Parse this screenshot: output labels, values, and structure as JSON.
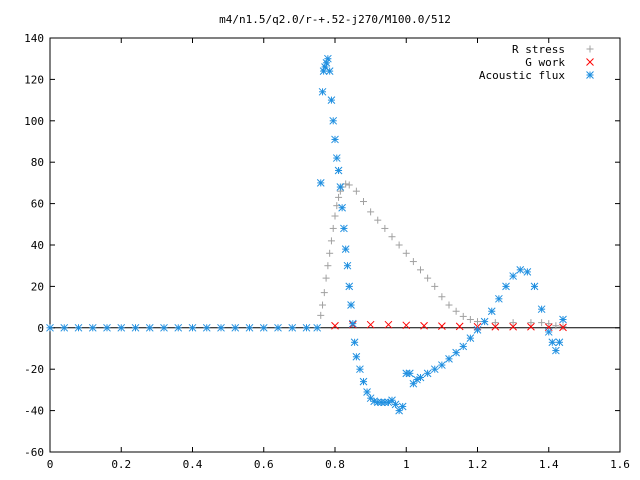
{
  "chart_data": {
    "type": "scatter",
    "title": "m4/n1.5/q2.0/r-+.52-j270/M100.0/512",
    "xlabel": "",
    "ylabel": "",
    "xlim": [
      0,
      1.6
    ],
    "ylim": [
      -60,
      140
    ],
    "xticks": [
      "0",
      "0.2",
      "0.4",
      "0.6",
      "0.8",
      "1",
      "1.2",
      "1.4",
      "1.6"
    ],
    "yticks": [
      "-60",
      "-40",
      "-20",
      "0",
      "20",
      "40",
      "60",
      "80",
      "100",
      "120",
      "140"
    ],
    "grid": false,
    "legend_position": "top-right",
    "series": [
      {
        "name": "R stress",
        "marker": "plus",
        "color": "#a0a0a0",
        "points": [
          [
            0.76,
            6
          ],
          [
            0.765,
            11
          ],
          [
            0.77,
            17
          ],
          [
            0.775,
            24
          ],
          [
            0.78,
            30
          ],
          [
            0.785,
            36
          ],
          [
            0.79,
            42
          ],
          [
            0.795,
            48
          ],
          [
            0.8,
            54
          ],
          [
            0.805,
            59
          ],
          [
            0.81,
            63
          ],
          [
            0.815,
            66
          ],
          [
            0.82,
            68
          ],
          [
            0.83,
            69.5
          ],
          [
            0.84,
            69
          ],
          [
            0.86,
            66
          ],
          [
            0.88,
            61
          ],
          [
            0.9,
            56
          ],
          [
            0.92,
            52
          ],
          [
            0.94,
            48
          ],
          [
            0.96,
            44
          ],
          [
            0.98,
            40
          ],
          [
            1.0,
            36
          ],
          [
            1.02,
            32
          ],
          [
            1.04,
            28
          ],
          [
            1.06,
            24
          ],
          [
            1.08,
            20
          ],
          [
            1.1,
            15
          ],
          [
            1.12,
            11
          ],
          [
            1.14,
            8
          ],
          [
            1.16,
            5.5
          ],
          [
            1.18,
            4
          ],
          [
            1.2,
            3
          ],
          [
            1.25,
            2.5
          ],
          [
            1.3,
            2.5
          ],
          [
            1.35,
            2.5
          ],
          [
            1.38,
            2.5
          ],
          [
            1.4,
            2
          ],
          [
            1.42,
            1
          ],
          [
            1.44,
            0.5
          ]
        ]
      },
      {
        "name": "G work",
        "marker": "cross",
        "color": "#ff0000",
        "points": [
          [
            0.8,
            1
          ],
          [
            0.85,
            1.5
          ],
          [
            0.9,
            1.5
          ],
          [
            0.95,
            1.5
          ],
          [
            1.0,
            1.2
          ],
          [
            1.05,
            1
          ],
          [
            1.1,
            0.8
          ],
          [
            1.15,
            0.7
          ],
          [
            1.2,
            0.5
          ],
          [
            1.25,
            0.5
          ],
          [
            1.3,
            0.5
          ],
          [
            1.35,
            0.5
          ],
          [
            1.4,
            0.3
          ],
          [
            1.44,
            0.2
          ]
        ]
      },
      {
        "name": "Acoustic flux",
        "marker": "star",
        "color": "#1f8fe0",
        "points": [
          [
            0.76,
            70
          ],
          [
            0.765,
            114
          ],
          [
            0.768,
            124
          ],
          [
            0.772,
            126
          ],
          [
            0.776,
            128
          ],
          [
            0.78,
            130
          ],
          [
            0.785,
            124
          ],
          [
            0.79,
            110
          ],
          [
            0.795,
            100
          ],
          [
            0.8,
            91
          ],
          [
            0.805,
            82
          ],
          [
            0.81,
            76
          ],
          [
            0.815,
            68
          ],
          [
            0.82,
            58
          ],
          [
            0.825,
            48
          ],
          [
            0.83,
            38
          ],
          [
            0.835,
            30
          ],
          [
            0.84,
            20
          ],
          [
            0.845,
            11
          ],
          [
            0.85,
            2
          ],
          [
            0.855,
            -7
          ],
          [
            0.86,
            -14
          ],
          [
            0.87,
            -20
          ],
          [
            0.88,
            -26
          ],
          [
            0.89,
            -31
          ],
          [
            0.9,
            -34
          ],
          [
            0.91,
            -35.5
          ],
          [
            0.92,
            -36
          ],
          [
            0.93,
            -36
          ],
          [
            0.94,
            -36
          ],
          [
            0.95,
            -36
          ],
          [
            0.96,
            -35
          ],
          [
            0.97,
            -37
          ],
          [
            0.98,
            -40
          ],
          [
            0.99,
            -38
          ],
          [
            1.0,
            -22
          ],
          [
            1.01,
            -22
          ],
          [
            1.02,
            -27
          ],
          [
            1.03,
            -25
          ],
          [
            1.04,
            -24
          ],
          [
            1.06,
            -22
          ],
          [
            1.08,
            -20
          ],
          [
            1.1,
            -18
          ],
          [
            1.12,
            -15
          ],
          [
            1.14,
            -12
          ],
          [
            1.16,
            -9
          ],
          [
            1.18,
            -5
          ],
          [
            1.2,
            -1
          ],
          [
            1.22,
            3
          ],
          [
            1.24,
            8
          ],
          [
            1.26,
            14
          ],
          [
            1.28,
            20
          ],
          [
            1.3,
            25
          ],
          [
            1.32,
            28
          ],
          [
            1.34,
            27
          ],
          [
            1.36,
            20
          ],
          [
            1.38,
            9
          ],
          [
            1.4,
            -2
          ],
          [
            1.41,
            -7
          ],
          [
            1.42,
            -11
          ],
          [
            1.43,
            -7
          ],
          [
            1.44,
            4
          ]
        ]
      },
      {
        "name": "",
        "marker": "star",
        "color": "#1f8fe0",
        "points": [
          [
            0.0,
            0
          ],
          [
            0.04,
            0
          ],
          [
            0.08,
            0
          ],
          [
            0.12,
            0
          ],
          [
            0.16,
            0
          ],
          [
            0.2,
            0
          ],
          [
            0.24,
            0
          ],
          [
            0.28,
            0
          ],
          [
            0.32,
            0
          ],
          [
            0.36,
            0
          ],
          [
            0.4,
            0
          ],
          [
            0.44,
            0
          ],
          [
            0.48,
            0
          ],
          [
            0.52,
            0
          ],
          [
            0.56,
            0
          ],
          [
            0.6,
            0
          ],
          [
            0.64,
            0
          ],
          [
            0.68,
            0
          ],
          [
            0.72,
            0
          ],
          [
            0.75,
            0
          ]
        ]
      }
    ]
  }
}
